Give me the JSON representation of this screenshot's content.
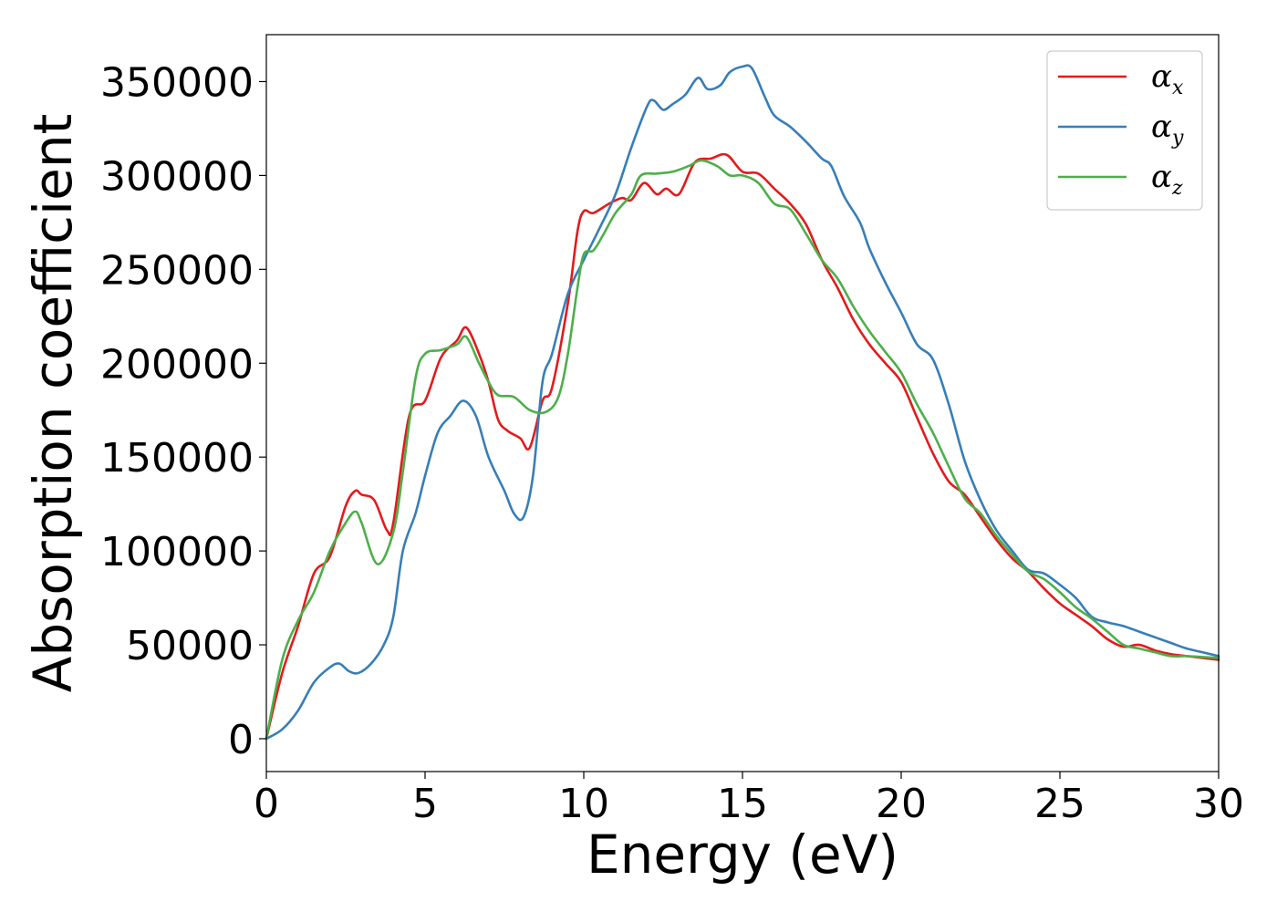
{
  "chart_data": {
    "type": "line",
    "title": "",
    "xlabel": "Energy (eV)",
    "ylabel": "Absorption coefficient",
    "xlim": [
      0,
      30
    ],
    "ylim": [
      -17500,
      375000
    ],
    "xticks": [
      0,
      5,
      10,
      15,
      20,
      25,
      30
    ],
    "xtick_labels": [
      "0",
      "5",
      "10",
      "15",
      "20",
      "25",
      "30"
    ],
    "yticks": [
      0,
      50000,
      100000,
      150000,
      200000,
      250000,
      300000,
      350000
    ],
    "ytick_labels": [
      "0",
      "50000",
      "100000",
      "150000",
      "200000",
      "250000",
      "300000",
      "350000"
    ],
    "grid": false,
    "legend_position": "top-right",
    "series": [
      {
        "name": "α",
        "name_subscript": "x",
        "color": "#e41a1c",
        "points": [
          [
            0,
            0
          ],
          [
            0.5,
            35000
          ],
          [
            1.0,
            60000
          ],
          [
            1.5,
            88000
          ],
          [
            2.0,
            97000
          ],
          [
            2.5,
            124000
          ],
          [
            2.8,
            132000
          ],
          [
            3.0,
            130000
          ],
          [
            3.4,
            127000
          ],
          [
            3.8,
            111000
          ],
          [
            4.0,
            115000
          ],
          [
            4.5,
            172000
          ],
          [
            5.0,
            180000
          ],
          [
            5.5,
            203000
          ],
          [
            6.0,
            212000
          ],
          [
            6.3,
            219000
          ],
          [
            6.7,
            205000
          ],
          [
            7.0,
            190000
          ],
          [
            7.3,
            170000
          ],
          [
            7.6,
            164000
          ],
          [
            8.0,
            160000
          ],
          [
            8.3,
            155000
          ],
          [
            8.7,
            180000
          ],
          [
            9.0,
            187000
          ],
          [
            9.5,
            232000
          ],
          [
            9.8,
            270000
          ],
          [
            10.0,
            281000
          ],
          [
            10.3,
            280000
          ],
          [
            10.8,
            285000
          ],
          [
            11.2,
            288000
          ],
          [
            11.5,
            287000
          ],
          [
            11.9,
            296000
          ],
          [
            12.3,
            290000
          ],
          [
            12.6,
            293000
          ],
          [
            13.0,
            290000
          ],
          [
            13.5,
            307000
          ],
          [
            14.0,
            309000
          ],
          [
            14.5,
            311000
          ],
          [
            15.0,
            302000
          ],
          [
            15.5,
            301000
          ],
          [
            16.0,
            293000
          ],
          [
            16.5,
            285000
          ],
          [
            17.0,
            274000
          ],
          [
            17.5,
            255000
          ],
          [
            18.0,
            240000
          ],
          [
            18.5,
            223000
          ],
          [
            19.0,
            210000
          ],
          [
            19.5,
            200000
          ],
          [
            20.0,
            190000
          ],
          [
            20.5,
            171000
          ],
          [
            21.0,
            152000
          ],
          [
            21.5,
            137000
          ],
          [
            22.0,
            130000
          ],
          [
            22.5,
            118000
          ],
          [
            23.0,
            106000
          ],
          [
            23.5,
            96000
          ],
          [
            24.0,
            89000
          ],
          [
            24.5,
            80000
          ],
          [
            25.0,
            72000
          ],
          [
            25.5,
            66000
          ],
          [
            26.0,
            60000
          ],
          [
            26.5,
            53000
          ],
          [
            27.0,
            49000
          ],
          [
            27.5,
            50000
          ],
          [
            28.0,
            47000
          ],
          [
            28.5,
            45000
          ],
          [
            29.0,
            44000
          ],
          [
            29.5,
            43000
          ],
          [
            30.0,
            42000
          ]
        ]
      },
      {
        "name": "α",
        "name_subscript": "y",
        "color": "#377eb8",
        "points": [
          [
            0,
            0
          ],
          [
            0.5,
            5000
          ],
          [
            1.0,
            15000
          ],
          [
            1.5,
            30000
          ],
          [
            2.0,
            38000
          ],
          [
            2.3,
            40000
          ],
          [
            2.6,
            36000
          ],
          [
            2.9,
            35000
          ],
          [
            3.3,
            40000
          ],
          [
            3.7,
            50000
          ],
          [
            4.0,
            65000
          ],
          [
            4.3,
            100000
          ],
          [
            4.7,
            120000
          ],
          [
            5.0,
            140000
          ],
          [
            5.4,
            163000
          ],
          [
            5.8,
            172000
          ],
          [
            6.2,
            180000
          ],
          [
            6.6,
            172000
          ],
          [
            7.0,
            150000
          ],
          [
            7.5,
            132000
          ],
          [
            7.8,
            120000
          ],
          [
            8.1,
            118000
          ],
          [
            8.4,
            140000
          ],
          [
            8.7,
            190000
          ],
          [
            9.0,
            205000
          ],
          [
            9.5,
            237000
          ],
          [
            10.0,
            255000
          ],
          [
            10.5,
            272000
          ],
          [
            11.0,
            290000
          ],
          [
            11.5,
            315000
          ],
          [
            12.0,
            337000
          ],
          [
            12.2,
            340000
          ],
          [
            12.5,
            335000
          ],
          [
            12.8,
            338000
          ],
          [
            13.2,
            343000
          ],
          [
            13.6,
            352000
          ],
          [
            13.9,
            346000
          ],
          [
            14.3,
            348000
          ],
          [
            14.6,
            355000
          ],
          [
            15.0,
            358000
          ],
          [
            15.3,
            357000
          ],
          [
            15.7,
            342000
          ],
          [
            16.0,
            332000
          ],
          [
            16.5,
            326000
          ],
          [
            17.0,
            318000
          ],
          [
            17.5,
            309000
          ],
          [
            17.8,
            305000
          ],
          [
            18.2,
            289000
          ],
          [
            18.7,
            275000
          ],
          [
            19.0,
            261000
          ],
          [
            19.5,
            243000
          ],
          [
            20.0,
            227000
          ],
          [
            20.5,
            210000
          ],
          [
            21.0,
            202000
          ],
          [
            21.5,
            178000
          ],
          [
            22.0,
            148000
          ],
          [
            22.5,
            127000
          ],
          [
            23.0,
            111000
          ],
          [
            23.5,
            100000
          ],
          [
            24.0,
            90000
          ],
          [
            24.5,
            88000
          ],
          [
            25.0,
            82000
          ],
          [
            25.5,
            75000
          ],
          [
            26.0,
            65000
          ],
          [
            26.5,
            62000
          ],
          [
            27.0,
            60000
          ],
          [
            27.5,
            57000
          ],
          [
            28.0,
            54000
          ],
          [
            28.5,
            51000
          ],
          [
            29.0,
            48000
          ],
          [
            29.5,
            46000
          ],
          [
            30.0,
            44000
          ]
        ]
      },
      {
        "name": "α",
        "name_subscript": "z",
        "color": "#4daf4a",
        "points": [
          [
            0,
            0
          ],
          [
            0.5,
            42000
          ],
          [
            1.0,
            63000
          ],
          [
            1.5,
            78000
          ],
          [
            2.0,
            100000
          ],
          [
            2.5,
            115000
          ],
          [
            2.8,
            121000
          ],
          [
            3.0,
            115000
          ],
          [
            3.5,
            93000
          ],
          [
            4.0,
            110000
          ],
          [
            4.3,
            142000
          ],
          [
            4.7,
            192000
          ],
          [
            5.0,
            205000
          ],
          [
            5.5,
            207000
          ],
          [
            6.0,
            210000
          ],
          [
            6.3,
            214000
          ],
          [
            6.7,
            200000
          ],
          [
            7.0,
            190000
          ],
          [
            7.3,
            183000
          ],
          [
            7.8,
            182000
          ],
          [
            8.3,
            175000
          ],
          [
            8.8,
            174000
          ],
          [
            9.2,
            182000
          ],
          [
            9.5,
            205000
          ],
          [
            9.8,
            240000
          ],
          [
            10.0,
            258000
          ],
          [
            10.3,
            260000
          ],
          [
            10.6,
            268000
          ],
          [
            11.0,
            280000
          ],
          [
            11.5,
            290000
          ],
          [
            11.8,
            300000
          ],
          [
            12.3,
            301000
          ],
          [
            12.8,
            302000
          ],
          [
            13.3,
            305000
          ],
          [
            13.7,
            308000
          ],
          [
            14.2,
            305000
          ],
          [
            14.6,
            300000
          ],
          [
            15.0,
            300000
          ],
          [
            15.5,
            296000
          ],
          [
            16.0,
            285000
          ],
          [
            16.5,
            282000
          ],
          [
            17.0,
            269000
          ],
          [
            17.5,
            255000
          ],
          [
            18.0,
            245000
          ],
          [
            18.5,
            230000
          ],
          [
            19.0,
            217000
          ],
          [
            19.5,
            206000
          ],
          [
            20.0,
            195000
          ],
          [
            20.5,
            178000
          ],
          [
            21.0,
            163000
          ],
          [
            21.5,
            145000
          ],
          [
            22.0,
            128000
          ],
          [
            22.5,
            120000
          ],
          [
            23.0,
            108000
          ],
          [
            23.5,
            98000
          ],
          [
            24.0,
            89000
          ],
          [
            24.5,
            85000
          ],
          [
            25.0,
            78000
          ],
          [
            25.5,
            70000
          ],
          [
            26.0,
            64000
          ],
          [
            26.5,
            57000
          ],
          [
            27.0,
            50000
          ],
          [
            27.5,
            48000
          ],
          [
            28.0,
            46000
          ],
          [
            28.5,
            44000
          ],
          [
            29.0,
            44000
          ],
          [
            29.5,
            43500
          ],
          [
            30.0,
            43000
          ]
        ]
      }
    ]
  }
}
